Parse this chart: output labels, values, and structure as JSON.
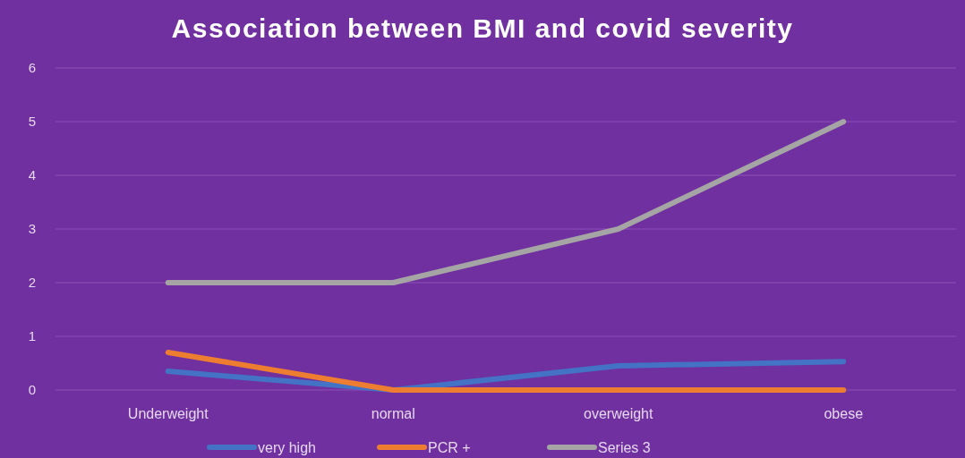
{
  "chart_data": {
    "type": "line",
    "title": "Association between BMI and covid severity",
    "categories": [
      "Underweight",
      "normal",
      "overweight",
      "obese"
    ],
    "series": [
      {
        "name": "very high",
        "color": "#4472c4",
        "values": [
          0.35,
          0,
          0.45,
          0.53
        ]
      },
      {
        "name": "PCR +",
        "color": "#ed7d31",
        "values": [
          0.7,
          0,
          0,
          0
        ]
      },
      {
        "name": "Series 3",
        "color": "#a5a5a5",
        "values": [
          2,
          2,
          3,
          5
        ]
      }
    ],
    "ylim": [
      0,
      6
    ],
    "yticks": [
      0,
      1,
      2,
      3,
      4,
      5,
      6
    ],
    "grid": "y",
    "legend": "bottom",
    "marker": "none",
    "line_style": "solid"
  }
}
